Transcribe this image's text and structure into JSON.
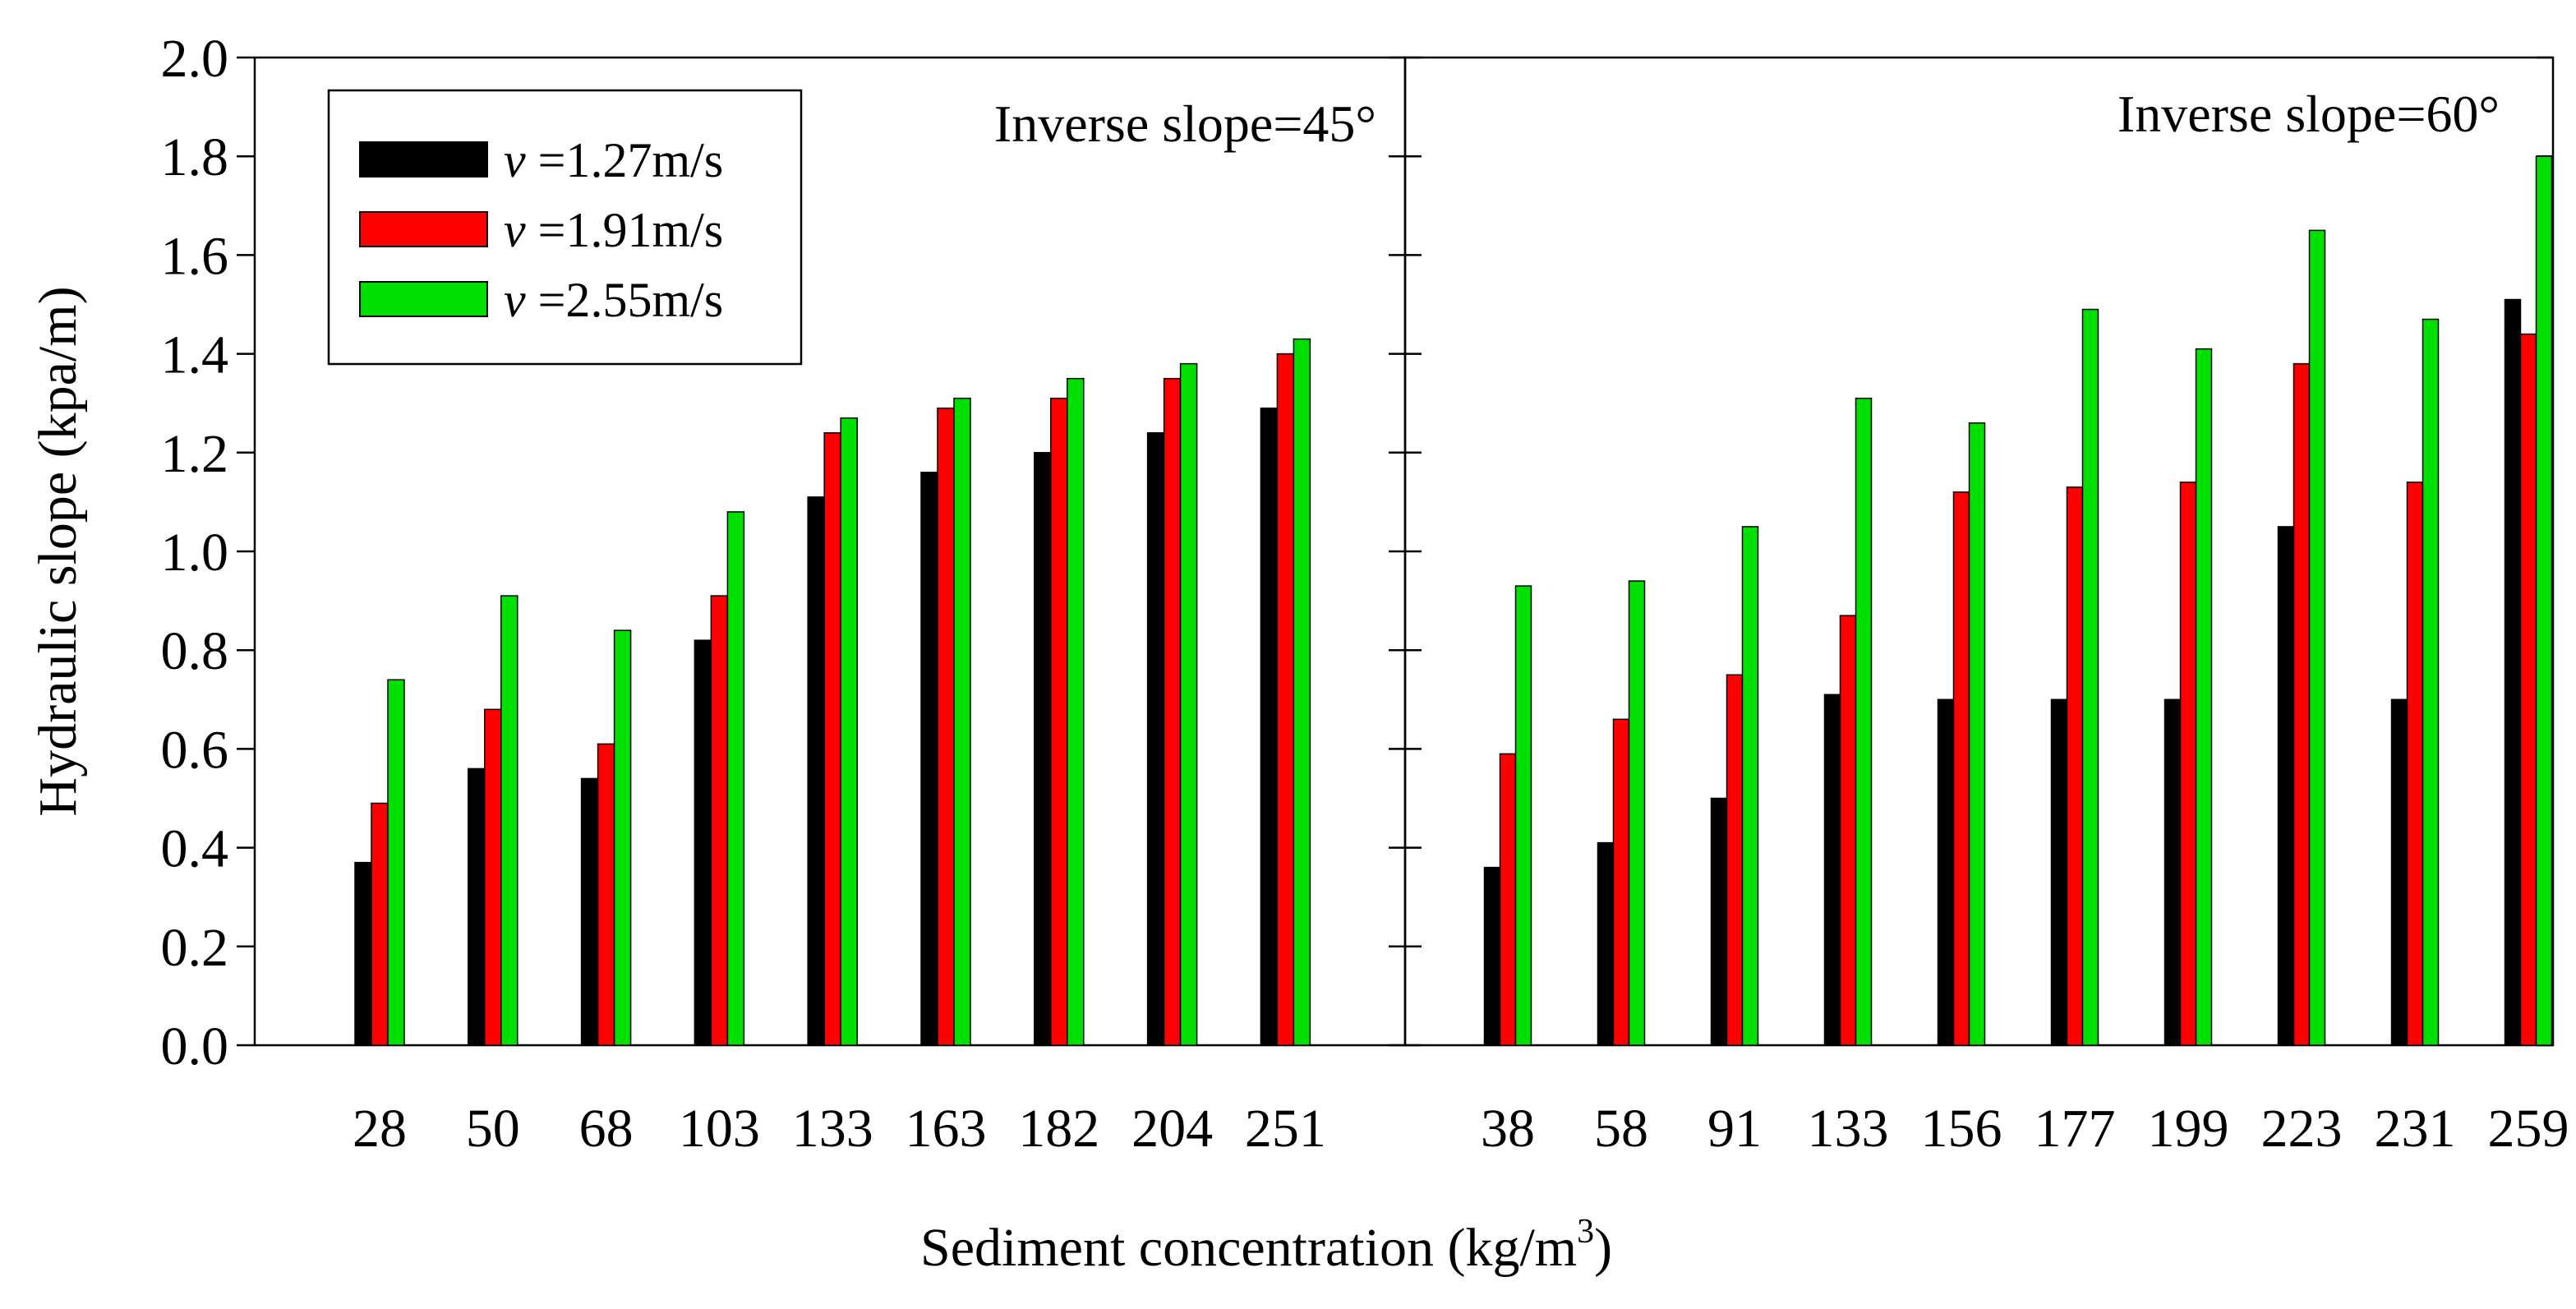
{
  "chart_data": {
    "type": "bar",
    "ylabel": "Hydraulic slope (kpa/m)",
    "xlabel_main": "Sediment concentration (kg/m",
    "xlabel_sup": "3",
    "xlabel_end": ")",
    "ylim": [
      0,
      2.0
    ],
    "yticks": [
      "0.0",
      "0.2",
      "0.4",
      "0.6",
      "0.8",
      "1.0",
      "1.2",
      "1.4",
      "1.6",
      "1.8",
      "2.0"
    ],
    "colors": [
      "#000000",
      "#ff0000",
      "#00e000"
    ],
    "legend": [
      {
        "symbol": "v",
        "label": " =1.27m/s"
      },
      {
        "symbol": "v",
        "label": " =1.91m/s"
      },
      {
        "symbol": "v",
        "label": " =2.55m/s"
      }
    ],
    "panels": [
      {
        "title": "Inverse slope=45°",
        "categories": [
          "28",
          "50",
          "68",
          "103",
          "133",
          "163",
          "182",
          "204",
          "251"
        ],
        "series": [
          {
            "name": "v =1.27m/s",
            "values": [
              0.37,
              0.56,
              0.54,
              0.82,
              1.11,
              1.16,
              1.2,
              1.24,
              1.29
            ]
          },
          {
            "name": "v =1.91m/s",
            "values": [
              0.49,
              0.68,
              0.61,
              0.91,
              1.24,
              1.29,
              1.31,
              1.35,
              1.4
            ]
          },
          {
            "name": "v =2.55m/s",
            "values": [
              0.74,
              0.91,
              0.84,
              1.08,
              1.27,
              1.31,
              1.35,
              1.38,
              1.43
            ]
          }
        ]
      },
      {
        "title": "Inverse slope=60°",
        "categories": [
          "38",
          "58",
          "91",
          "133",
          "156",
          "177",
          "199",
          "223",
          "231",
          "259"
        ],
        "series": [
          {
            "name": "v =1.27m/s",
            "values": [
              0.36,
              0.41,
              0.5,
              0.71,
              0.7,
              0.7,
              0.7,
              1.05,
              0.7,
              1.51
            ]
          },
          {
            "name": "v =1.91m/s",
            "values": [
              0.59,
              0.66,
              0.75,
              0.87,
              1.12,
              1.13,
              1.14,
              1.38,
              1.14,
              1.44
            ]
          },
          {
            "name": "v =2.55m/s",
            "values": [
              0.93,
              0.94,
              1.05,
              1.31,
              1.26,
              1.49,
              1.41,
              1.65,
              1.47,
              1.8
            ]
          }
        ]
      }
    ]
  }
}
